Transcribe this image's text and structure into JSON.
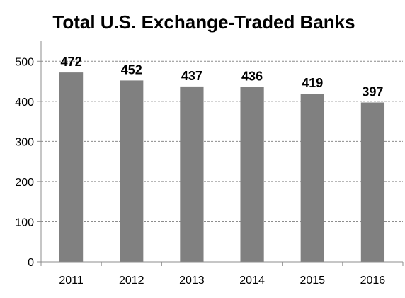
{
  "chart_data": {
    "type": "bar",
    "title": "Total U.S. Exchange-Traded Banks",
    "xlabel": "",
    "ylabel": "",
    "categories": [
      "2011",
      "2012",
      "2013",
      "2014",
      "2015",
      "2016"
    ],
    "values": [
      472,
      452,
      437,
      436,
      419,
      397
    ],
    "data_labels": [
      "472",
      "452",
      "437",
      "436",
      "419",
      "397"
    ],
    "ylim": [
      0,
      550
    ],
    "y_ticks": [
      0,
      100,
      200,
      300,
      400,
      500
    ],
    "y_tick_labels": [
      "0",
      "100",
      "200",
      "300",
      "400",
      "500"
    ],
    "grid": true,
    "legend": "none",
    "colors": {
      "bar": "#808080",
      "grid": "#8c8c8c",
      "text": "#000000"
    }
  }
}
